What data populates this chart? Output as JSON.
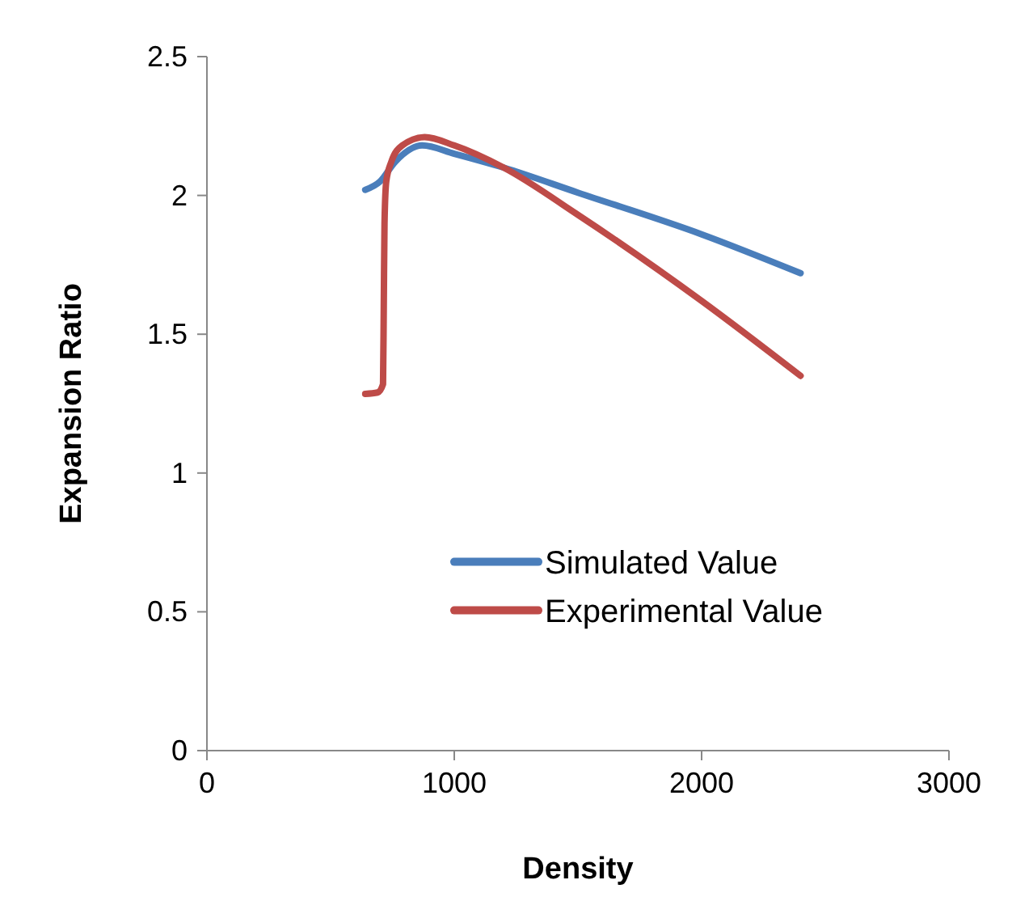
{
  "chart_data": {
    "type": "line",
    "xlabel": "Density",
    "ylabel": "Expansion Ratio",
    "xlim": [
      0,
      3000
    ],
    "xticks": [
      0,
      1000,
      2000,
      3000
    ],
    "ylim": [
      0,
      2.5
    ],
    "yticks": [
      0,
      0.5,
      1,
      1.5,
      2,
      2.5
    ],
    "grid": false,
    "legend": "right",
    "line_style": "solid",
    "series": [
      {
        "name": "Simulated Value",
        "color": "#4a7ebb",
        "x": [
          640,
          700,
          760,
          870,
          1000,
          1200,
          1500,
          2000,
          2400
        ],
        "values": [
          2.02,
          2.05,
          2.12,
          2.18,
          2.15,
          2.1,
          2.01,
          1.86,
          1.72
        ]
      },
      {
        "name": "Experimental Value",
        "color": "#be4b48",
        "x": [
          640,
          690,
          712,
          715,
          718,
          725,
          745,
          790,
          880,
          1000,
          1200,
          1500,
          2000,
          2400
        ],
        "values": [
          1.285,
          1.29,
          1.32,
          1.6,
          1.9,
          2.05,
          2.12,
          2.18,
          2.21,
          2.18,
          2.1,
          1.93,
          1.62,
          1.35
        ]
      }
    ]
  }
}
